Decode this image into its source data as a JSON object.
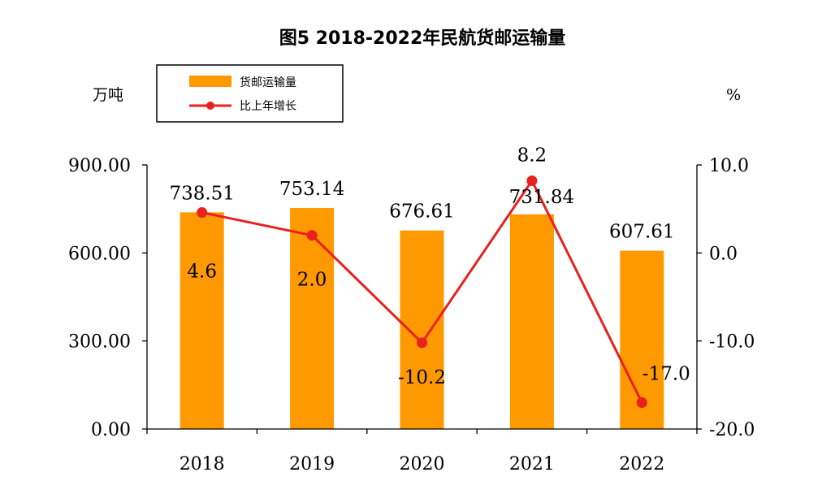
{
  "chart_data": {
    "type": "bar",
    "title": "图5  2018-2022年民航货邮运输量",
    "y_left_unit": "万吨",
    "y_right_unit": "%",
    "categories": [
      "2018",
      "2019",
      "2020",
      "2021",
      "2022"
    ],
    "y_left_ticks": [
      "0.00",
      "300.00",
      "600.00",
      "900.00"
    ],
    "y_right_ticks": [
      "-20.0",
      "-10.0",
      "0.0",
      "10.0"
    ],
    "y_left_lim": [
      0,
      900
    ],
    "y_right_lim": [
      -20,
      10
    ],
    "legend_placement": "top-left",
    "series": [
      {
        "name": "货邮运输量",
        "kind": "bar",
        "axis": "left",
        "color": "#FF9900",
        "values": [
          738.51,
          753.14,
          676.61,
          731.84,
          607.61
        ],
        "labels": [
          "738.51",
          "753.14",
          "676.61",
          "731.84",
          "607.61"
        ]
      },
      {
        "name": "比上年增长",
        "kind": "line",
        "axis": "right",
        "color": "#E8201E",
        "values": [
          4.6,
          2.0,
          -10.2,
          8.2,
          -17.0
        ],
        "labels": [
          "4.6",
          "2.0",
          "-10.2",
          "8.2",
          "-17.0"
        ]
      }
    ]
  }
}
